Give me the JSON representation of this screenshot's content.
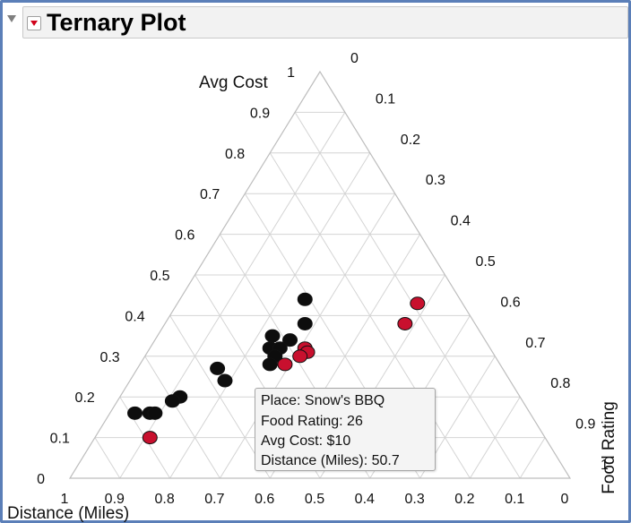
{
  "title": "Ternary Plot",
  "chart_data": {
    "type": "scatter",
    "plot_kind": "ternary",
    "axes": [
      {
        "name": "Avg Cost",
        "ticks": [
          "1",
          "0.9",
          "0.8",
          "0.7",
          "0.6",
          "0.5",
          "0.4",
          "0.3",
          "0.2",
          "0.1",
          "0"
        ]
      },
      {
        "name": "Food Rating",
        "ticks": [
          "0",
          "0.1",
          "0.2",
          "0.3",
          "0.4",
          "0.5",
          "0.6",
          "0.7",
          "0.8",
          "0.9",
          "1"
        ]
      },
      {
        "name": "Distance (Miles)",
        "ticks": [
          "1",
          "0.9",
          "0.8",
          "0.7",
          "0.6",
          "0.5",
          "0.4",
          "0.3",
          "0.2",
          "0.1",
          "0"
        ]
      }
    ],
    "grid": true,
    "points": [
      {
        "avg_cost": 0.44,
        "food_rating": 0.25,
        "distance": 0.31,
        "color": "black"
      },
      {
        "avg_cost": 0.38,
        "food_rating": 0.28,
        "distance": 0.34,
        "color": "black"
      },
      {
        "avg_cost": 0.35,
        "food_rating": 0.23,
        "distance": 0.42,
        "color": "black"
      },
      {
        "avg_cost": 0.34,
        "food_rating": 0.27,
        "distance": 0.39,
        "color": "black"
      },
      {
        "avg_cost": 0.32,
        "food_rating": 0.24,
        "distance": 0.44,
        "color": "black"
      },
      {
        "avg_cost": 0.32,
        "food_rating": 0.26,
        "distance": 0.42,
        "color": "black"
      },
      {
        "avg_cost": 0.3,
        "food_rating": 0.26,
        "distance": 0.44,
        "color": "black"
      },
      {
        "avg_cost": 0.28,
        "food_rating": 0.26,
        "distance": 0.46,
        "color": "black"
      },
      {
        "avg_cost": 0.27,
        "food_rating": 0.16,
        "distance": 0.57,
        "color": "black"
      },
      {
        "avg_cost": 0.24,
        "food_rating": 0.19,
        "distance": 0.57,
        "color": "black"
      },
      {
        "avg_cost": 0.2,
        "food_rating": 0.12,
        "distance": 0.68,
        "color": "black"
      },
      {
        "avg_cost": 0.19,
        "food_rating": 0.11,
        "distance": 0.7,
        "color": "black"
      },
      {
        "avg_cost": 0.16,
        "food_rating": 0.05,
        "distance": 0.79,
        "color": "black"
      },
      {
        "avg_cost": 0.16,
        "food_rating": 0.08,
        "distance": 0.76,
        "color": "black"
      },
      {
        "avg_cost": 0.16,
        "food_rating": 0.09,
        "distance": 0.75,
        "color": "black"
      },
      {
        "avg_cost": 0.43,
        "food_rating": 0.48,
        "distance": 0.09,
        "color": "red"
      },
      {
        "avg_cost": 0.38,
        "food_rating": 0.48,
        "distance": 0.14,
        "color": "red"
      },
      {
        "avg_cost": 0.32,
        "food_rating": 0.31,
        "distance": 0.37,
        "color": "red"
      },
      {
        "avg_cost": 0.31,
        "food_rating": 0.32,
        "distance": 0.37,
        "color": "red"
      },
      {
        "avg_cost": 0.3,
        "food_rating": 0.31,
        "distance": 0.39,
        "color": "red"
      },
      {
        "avg_cost": 0.28,
        "food_rating": 0.29,
        "distance": 0.43,
        "color": "red"
      },
      {
        "avg_cost": 0.1,
        "food_rating": 0.11,
        "distance": 0.79,
        "color": "red"
      }
    ],
    "point_colors": {
      "black": "#0d0d0d",
      "red": "#c8102e"
    }
  },
  "tooltip": {
    "place": "Place: Snow's BBQ",
    "food_rating": "Food Rating: 26",
    "avg_cost": "Avg Cost: $10",
    "distance": "Distance (Miles): 50.7"
  }
}
